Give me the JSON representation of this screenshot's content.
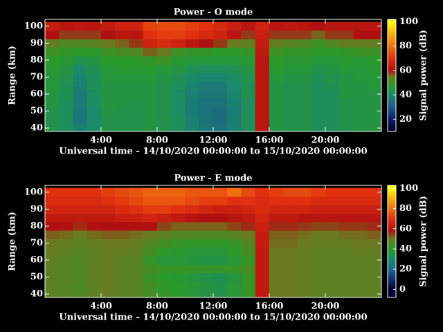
{
  "chart_data": [
    {
      "type": "heatmap",
      "title": "Power - O mode",
      "xlabel": "Universal time - 14/10/2020 00:00:00 to 15/10/2020 00:00:00",
      "ylabel": "Range (km)",
      "x": [
        0.5,
        1.5,
        2.5,
        3.5,
        4.5,
        5.5,
        6.5,
        7.5,
        8.5,
        9.5,
        10.5,
        11.5,
        12.5,
        13.5,
        14.5,
        15.5,
        16.5,
        17.5,
        18.5,
        19.5,
        20.5,
        21.5,
        22.5,
        23.5
      ],
      "y": [
        40,
        45,
        50,
        55,
        60,
        65,
        70,
        75,
        80,
        85,
        90,
        95,
        100
      ],
      "z": [
        [
          44,
          42,
          38,
          40,
          44,
          44,
          44,
          45,
          44,
          42,
          38,
          36,
          35,
          38,
          42,
          62,
          45,
          44,
          44,
          42,
          42,
          44,
          45,
          45
        ],
        [
          44,
          42,
          36,
          40,
          44,
          44,
          44,
          45,
          44,
          42,
          38,
          35,
          34,
          38,
          42,
          62,
          45,
          44,
          44,
          42,
          42,
          44,
          45,
          45
        ],
        [
          44,
          42,
          36,
          40,
          45,
          44,
          44,
          45,
          44,
          41,
          37,
          35,
          34,
          37,
          42,
          62,
          45,
          44,
          44,
          42,
          42,
          44,
          45,
          45
        ],
        [
          45,
          42,
          37,
          41,
          45,
          45,
          44,
          45,
          44,
          41,
          37,
          35,
          35,
          38,
          42,
          62,
          45,
          44,
          44,
          42,
          42,
          44,
          45,
          45
        ],
        [
          45,
          43,
          37,
          41,
          45,
          45,
          45,
          45,
          44,
          41,
          38,
          36,
          36,
          39,
          43,
          62,
          45,
          44,
          44,
          42,
          42,
          45,
          45,
          45
        ],
        [
          46,
          43,
          38,
          42,
          45,
          45,
          45,
          45,
          44,
          42,
          39,
          37,
          37,
          40,
          43,
          62,
          45,
          44,
          44,
          42,
          43,
          45,
          45,
          46
        ],
        [
          46,
          44,
          39,
          42,
          46,
          46,
          46,
          46,
          45,
          43,
          40,
          39,
          39,
          41,
          44,
          62,
          46,
          45,
          45,
          43,
          44,
          45,
          46,
          46
        ],
        [
          47,
          45,
          40,
          43,
          46,
          47,
          47,
          47,
          46,
          45,
          43,
          42,
          42,
          43,
          45,
          62,
          47,
          46,
          46,
          44,
          45,
          46,
          46,
          47
        ],
        [
          48,
          47,
          44,
          45,
          48,
          48,
          48,
          49,
          50,
          47,
          46,
          46,
          46,
          46,
          47,
          62,
          48,
          47,
          47,
          46,
          46,
          47,
          47,
          48
        ],
        [
          50,
          49,
          48,
          48,
          50,
          51,
          52,
          56,
          55,
          50,
          49,
          49,
          48,
          48,
          49,
          63,
          50,
          49,
          49,
          48,
          48,
          49,
          50,
          50
        ],
        [
          54,
          52,
          52,
          53,
          55,
          56,
          58,
          66,
          68,
          66,
          62,
          60,
          58,
          55,
          54,
          64,
          54,
          53,
          52,
          50,
          52,
          54,
          54,
          54
        ],
        [
          60,
          58,
          58,
          58,
          60,
          62,
          62,
          70,
          72,
          72,
          70,
          68,
          66,
          62,
          58,
          65,
          58,
          58,
          58,
          56,
          58,
          58,
          60,
          60
        ],
        [
          64,
          62,
          63,
          62,
          64,
          66,
          66,
          73,
          74,
          74,
          72,
          70,
          68,
          65,
          62,
          66,
          62,
          63,
          62,
          60,
          62,
          62,
          62,
          62
        ]
      ],
      "xlim": [
        0,
        24
      ],
      "ylim": [
        38,
        104
      ],
      "xticks": [
        {
          "value": 4,
          "label": "4:00"
        },
        {
          "value": 8,
          "label": "8:00"
        },
        {
          "value": 12,
          "label": "12:00"
        },
        {
          "value": 16,
          "label": "16:00"
        },
        {
          "value": 20,
          "label": "20:00"
        }
      ],
      "yticks": [
        40,
        50,
        60,
        70,
        80,
        90,
        100
      ],
      "colorbar": {
        "label": "Signal power (dB)",
        "clim": [
          10,
          102
        ],
        "ticks": [
          20,
          40,
          60,
          80,
          100
        ]
      },
      "colorscale": [
        {
          "value": 10,
          "color": "#000020"
        },
        {
          "value": 20,
          "color": "#0a1a6a"
        },
        {
          "value": 30,
          "color": "#1a5a8a"
        },
        {
          "value": 40,
          "color": "#1a8a6a"
        },
        {
          "value": 48,
          "color": "#2a9a2a"
        },
        {
          "value": 55,
          "color": "#6a7a20"
        },
        {
          "value": 60,
          "color": "#b01010"
        },
        {
          "value": 70,
          "color": "#e03010"
        },
        {
          "value": 80,
          "color": "#f07010"
        },
        {
          "value": 90,
          "color": "#f8b010"
        },
        {
          "value": 100,
          "color": "#ffff00"
        }
      ]
    },
    {
      "type": "heatmap",
      "title": "Power - E mode",
      "xlabel": "Universal time - 14/10/2020 00:00:00 to 15/10/2020 00:00:00",
      "ylabel": "Range (km)",
      "x": [
        0.5,
        1.5,
        2.5,
        3.5,
        4.5,
        5.5,
        6.5,
        7.5,
        8.5,
        9.5,
        10.5,
        11.5,
        12.5,
        13.5,
        14.5,
        15.5,
        16.5,
        17.5,
        18.5,
        19.5,
        20.5,
        21.5,
        22.5,
        23.5
      ],
      "y": [
        40,
        45,
        50,
        55,
        60,
        65,
        70,
        75,
        80,
        85,
        90,
        95,
        100
      ],
      "z": [
        [
          48,
          47,
          46,
          48,
          49,
          48,
          47,
          44,
          42,
          40,
          38,
          36,
          35,
          38,
          42,
          62,
          50,
          50,
          49,
          48,
          48,
          48,
          48,
          48
        ],
        [
          48,
          47,
          45,
          48,
          49,
          48,
          47,
          44,
          41,
          40,
          38,
          36,
          35,
          38,
          42,
          62,
          50,
          50,
          49,
          48,
          48,
          48,
          48,
          48
        ],
        [
          48,
          47,
          46,
          48,
          49,
          48,
          47,
          43,
          40,
          39,
          37,
          35,
          34,
          37,
          42,
          62,
          50,
          50,
          49,
          48,
          48,
          48,
          48,
          48
        ],
        [
          48,
          47,
          46,
          48,
          49,
          48,
          47,
          44,
          42,
          42,
          42,
          42,
          42,
          42,
          44,
          62,
          50,
          50,
          49,
          48,
          48,
          48,
          48,
          48
        ],
        [
          48,
          47,
          46,
          48,
          49,
          48,
          47,
          42,
          38,
          38,
          37,
          36,
          36,
          38,
          42,
          62,
          50,
          50,
          49,
          48,
          48,
          48,
          48,
          48
        ],
        [
          49,
          48,
          47,
          48,
          49,
          49,
          48,
          44,
          40,
          39,
          38,
          38,
          38,
          40,
          44,
          62,
          50,
          50,
          49,
          48,
          48,
          48,
          49,
          49
        ],
        [
          50,
          49,
          48,
          49,
          50,
          50,
          49,
          46,
          44,
          42,
          41,
          41,
          41,
          42,
          46,
          63,
          51,
          51,
          50,
          49,
          49,
          49,
          50,
          50
        ],
        [
          52,
          51,
          50,
          51,
          52,
          52,
          51,
          50,
          48,
          46,
          46,
          46,
          46,
          47,
          50,
          63,
          52,
          52,
          51,
          50,
          50,
          51,
          51,
          52
        ],
        [
          58,
          58,
          56,
          58,
          58,
          58,
          58,
          58,
          54,
          52,
          52,
          52,
          52,
          54,
          56,
          64,
          56,
          56,
          55,
          54,
          54,
          55,
          55,
          56
        ],
        [
          62,
          62,
          62,
          62,
          62,
          64,
          64,
          66,
          64,
          62,
          60,
          58,
          58,
          60,
          62,
          66,
          62,
          62,
          60,
          60,
          60,
          60,
          60,
          60
        ],
        [
          66,
          66,
          66,
          66,
          66,
          68,
          70,
          72,
          72,
          70,
          68,
          66,
          64,
          64,
          66,
          68,
          66,
          66,
          66,
          64,
          64,
          64,
          64,
          64
        ],
        [
          68,
          68,
          68,
          68,
          70,
          72,
          74,
          76,
          76,
          76,
          74,
          72,
          72,
          70,
          70,
          68,
          70,
          70,
          70,
          68,
          68,
          68,
          68,
          68
        ],
        [
          70,
          70,
          70,
          70,
          72,
          74,
          76,
          78,
          78,
          78,
          76,
          76,
          76,
          80,
          74,
          70,
          72,
          74,
          74,
          72,
          70,
          70,
          70,
          70
        ]
      ],
      "xlim": [
        0,
        24
      ],
      "ylim": [
        38,
        104
      ],
      "xticks": [
        {
          "value": 4,
          "label": "4:00"
        },
        {
          "value": 8,
          "label": "8:00"
        },
        {
          "value": 12,
          "label": "12:00"
        },
        {
          "value": 16,
          "label": "16:00"
        },
        {
          "value": 20,
          "label": "20:00"
        }
      ],
      "yticks": [
        40,
        50,
        60,
        70,
        80,
        90,
        100
      ],
      "colorbar": {
        "label": "Signal power (dB)",
        "clim": [
          -8,
          103
        ],
        "ticks": [
          0,
          20,
          40,
          60,
          80,
          100
        ]
      },
      "colorscale": [
        {
          "value": 0,
          "color": "#000030"
        },
        {
          "value": 10,
          "color": "#103070"
        },
        {
          "value": 20,
          "color": "#1a6a8a"
        },
        {
          "value": 30,
          "color": "#1a8a6a"
        },
        {
          "value": 40,
          "color": "#2a9a2a"
        },
        {
          "value": 50,
          "color": "#6a7a20"
        },
        {
          "value": 58,
          "color": "#b01010"
        },
        {
          "value": 70,
          "color": "#e03010"
        },
        {
          "value": 80,
          "color": "#f07010"
        },
        {
          "value": 90,
          "color": "#f8b010"
        },
        {
          "value": 100,
          "color": "#ffff00"
        }
      ]
    }
  ]
}
